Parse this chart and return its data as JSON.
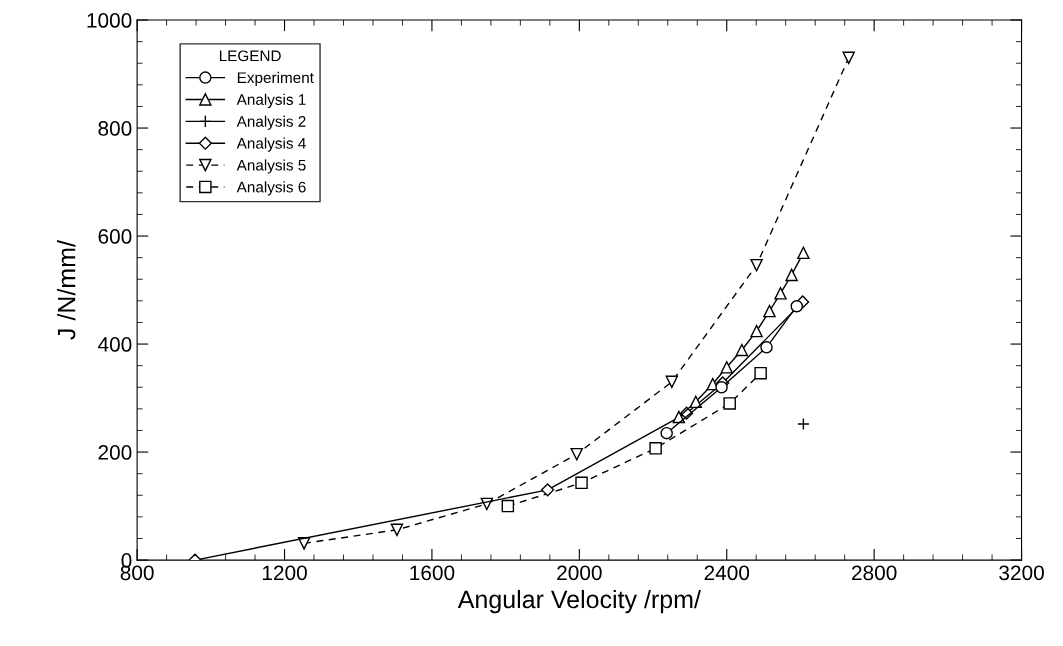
{
  "chart_data": {
    "type": "line",
    "xlabel": "Angular Velocity /rpm/",
    "ylabel": "J /N/mm/",
    "legend_title": "LEGEND",
    "xlim": [
      800,
      3200
    ],
    "ylim": [
      0,
      1000
    ],
    "xticks": [
      800,
      1200,
      1600,
      2000,
      2400,
      2800,
      3200
    ],
    "yticks": [
      0,
      200,
      400,
      600,
      800,
      1000
    ],
    "grid": false,
    "legend": "top left",
    "series": [
      {
        "name": "Experiment",
        "color": "#000000",
        "marker": "circle",
        "line_style": "solid",
        "x": [
          2237,
          2386,
          2508,
          2590
        ],
        "values": [
          235,
          320,
          394,
          470
        ]
      },
      {
        "name": "Analysis 1",
        "color": "#000000",
        "marker": "triangle",
        "line_style": "solid",
        "x": [
          2270,
          2316,
          2362,
          2400,
          2441,
          2481,
          2516,
          2546,
          2576,
          2608
        ],
        "values": [
          265,
          293,
          326,
          357,
          389,
          424,
          461,
          494,
          528,
          569
        ]
      },
      {
        "name": "Analysis 2",
        "color": "#000000",
        "marker": "cross",
        "line_style": "solid",
        "x": [
          2608
        ],
        "values": [
          252
        ]
      },
      {
        "name": "Analysis 4",
        "color": "#000000",
        "marker": "diamond",
        "line_style": "solid",
        "x": [
          957,
          1914,
          2291,
          2389,
          2606
        ],
        "values": [
          0,
          130,
          272,
          328,
          478
        ]
      },
      {
        "name": "Analysis 5",
        "color": "#000000",
        "marker": "triangle_down",
        "line_style": "dashed",
        "x": [
          1253,
          1505,
          1749,
          1993,
          2251,
          2481,
          2731
        ],
        "values": [
          31,
          56,
          104,
          196,
          330,
          546,
          930
        ]
      },
      {
        "name": "Analysis 6",
        "color": "#000000",
        "marker": "square",
        "line_style": "dashed",
        "x": [
          1806,
          2006,
          2207,
          2408,
          2492
        ],
        "values": [
          100,
          143,
          207,
          290,
          346
        ]
      }
    ]
  }
}
